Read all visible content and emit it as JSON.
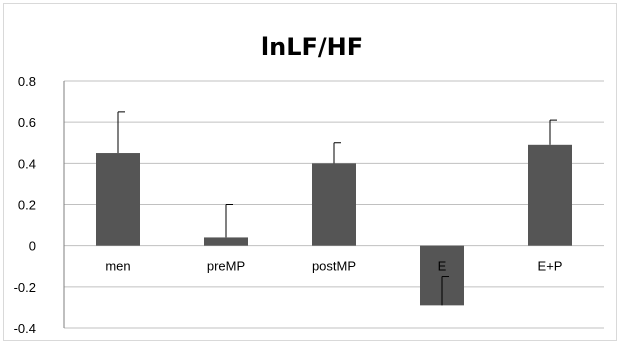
{
  "chart_data": {
    "type": "bar",
    "title": "lnLF/HF",
    "xlabel": "",
    "ylabel": "",
    "categories": [
      "men",
      "preMP",
      "postMP",
      "E",
      "E+P"
    ],
    "series": [
      {
        "values": [
          0.45,
          0.04,
          0.4,
          -0.29,
          0.49
        ],
        "error_plus": [
          0.2,
          0.16,
          0.1,
          0.14,
          0.12
        ]
      }
    ],
    "ylim": [
      -0.4,
      0.8
    ],
    "yticks": [
      "0.8",
      "0.6",
      "0.4",
      "0.2",
      "0",
      "-0.2",
      "-0.4"
    ],
    "grid": true,
    "legend": "none",
    "colors": {
      "bar": "#555555",
      "grid": "#c0c0c0",
      "axis": "#7f7f7f"
    }
  }
}
